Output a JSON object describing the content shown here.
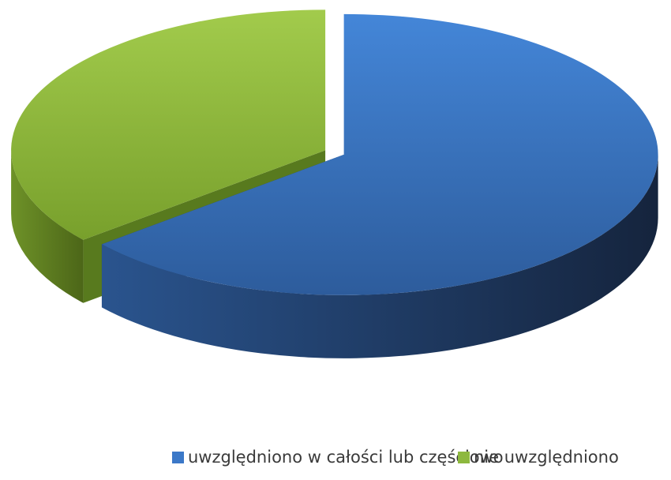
{
  "chart_data": {
    "type": "pie3d",
    "categories": [
      "uwzględniono w całości lub częściowo",
      "nie uwzględniono"
    ],
    "values": [
      64,
      36
    ],
    "colors": [
      "#3b78c8",
      "#8db83e"
    ],
    "legend": "bottom"
  }
}
